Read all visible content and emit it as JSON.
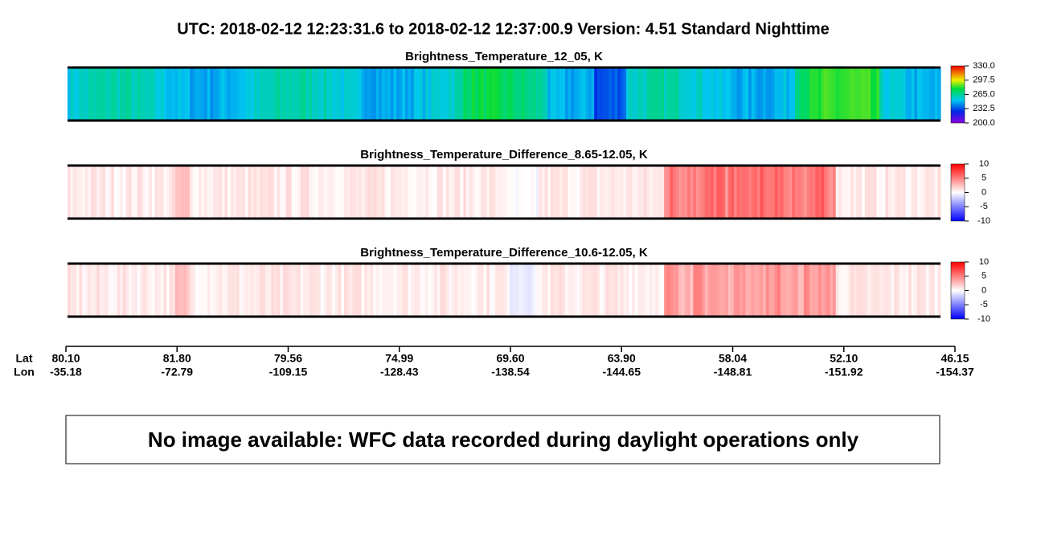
{
  "header": {
    "title": "UTC:  2018-02-12   12:23:31.6  to  2018-02-12   12:37:00.9    Version: 4.51  Standard Nighttime"
  },
  "panels": [
    {
      "title": "Brightness_Temperature_12_05, K",
      "colorbar": {
        "lim": [
          200,
          330
        ],
        "ticks": [
          {
            "value": 200,
            "label": "200.0"
          },
          {
            "value": 232.5,
            "label": "232.5"
          },
          {
            "value": 265,
            "label": "265.0"
          },
          {
            "value": 297.5,
            "label": "297.5"
          },
          {
            "value": 330,
            "label": "330.0"
          }
        ]
      }
    },
    {
      "title": "Brightness_Temperature_Difference_8.65-12.05, K",
      "colorbar": {
        "lim": [
          -10,
          10
        ],
        "ticks": [
          -10,
          -5,
          0,
          5,
          10
        ]
      }
    },
    {
      "title": "Brightness_Temperature_Difference_10.6-12.05, K",
      "colorbar": {
        "lim": [
          -10,
          10
        ],
        "ticks": [
          -10,
          -5,
          0,
          5,
          10
        ]
      }
    }
  ],
  "axis": {
    "lat_label": "Lat",
    "lon_label": "Lon",
    "ticks": [
      {
        "lat": "80.10",
        "lon": "-35.18"
      },
      {
        "lat": "81.80",
        "lon": "-72.79"
      },
      {
        "lat": "79.56",
        "lon": "-109.15"
      },
      {
        "lat": "74.99",
        "lon": "-128.43"
      },
      {
        "lat": "69.60",
        "lon": "-138.54"
      },
      {
        "lat": "63.90",
        "lon": "-144.65"
      },
      {
        "lat": "58.04",
        "lon": "-148.81"
      },
      {
        "lat": "52.10",
        "lon": "-151.92"
      },
      {
        "lat": "46.15",
        "lon": "-154.37"
      }
    ]
  },
  "notice": "No image available: WFC data recorded during daylight operations only"
}
